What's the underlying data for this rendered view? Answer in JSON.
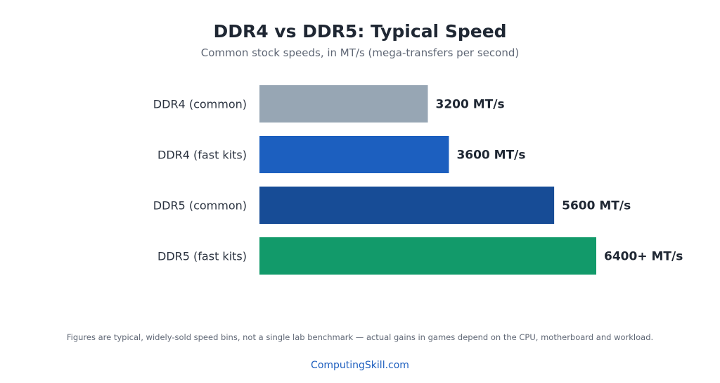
{
  "chart_data": {
    "type": "bar",
    "orientation": "horizontal",
    "title": "DDR4 vs DDR5: Typical Speed",
    "subtitle": "Common stock speeds, in MT/s (mega-transfers per second)",
    "categories": [
      "DDR4 (common)",
      "DDR4 (fast kits)",
      "DDR5 (common)",
      "DDR5 (fast kits)"
    ],
    "values": [
      3200,
      3600,
      5600,
      6400
    ],
    "value_labels": [
      "3200 MT/s",
      "3600 MT/s",
      "5600 MT/s",
      "6400+ MT/s"
    ],
    "colors": [
      "#97a6b4",
      "#1c5fbf",
      "#174c96",
      "#129a6a"
    ],
    "xlim": [
      0,
      6400
    ],
    "grid": false,
    "legend": "none"
  },
  "footnote": "Figures are typical, widely-sold speed bins, not a single lab benchmark — actual gains in games depend on the CPU, motherboard and workload.",
  "brand": "ComputingSkill.com"
}
